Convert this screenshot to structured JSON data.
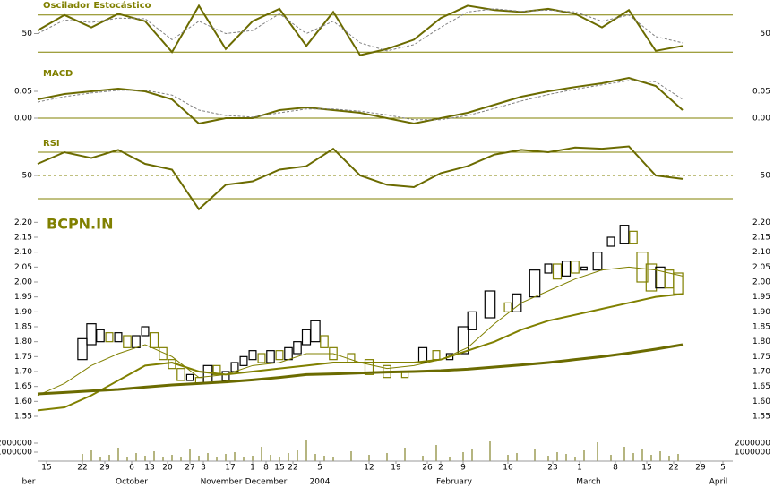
{
  "chart_data": [
    {
      "type": "line",
      "title": "Oscilador Estocástico",
      "ylim": [
        0,
        100
      ],
      "yticks": [
        50
      ],
      "reference_lines": [
        20,
        80
      ],
      "x": [
        0,
        6,
        12,
        18,
        24,
        30,
        36,
        42,
        48,
        54,
        60,
        66,
        72,
        78,
        84,
        90,
        96,
        102,
        108,
        114,
        120,
        126,
        132,
        138,
        144
      ],
      "series": [
        {
          "color": "#6b6b00",
          "style": "solid",
          "values": [
            55,
            80,
            60,
            82,
            70,
            20,
            95,
            25,
            70,
            90,
            30,
            85,
            15,
            25,
            40,
            75,
            95,
            88,
            85,
            90,
            82,
            60,
            88,
            22,
            30
          ]
        },
        {
          "color": "#808080",
          "style": "dashed",
          "values": [
            50,
            72,
            68,
            75,
            74,
            40,
            70,
            50,
            55,
            82,
            50,
            70,
            35,
            22,
            32,
            60,
            85,
            90,
            86,
            88,
            85,
            70,
            80,
            45,
            35
          ]
        }
      ]
    },
    {
      "type": "line",
      "title": "MACD",
      "ylim": [
        -0.03,
        0.09
      ],
      "yticks": [
        {
          "value": 0.05,
          "label": "0.05"
        },
        {
          "value": 0,
          "label": "0.00"
        }
      ],
      "reference_lines": [
        0
      ],
      "x": [
        0,
        6,
        12,
        18,
        24,
        30,
        36,
        42,
        48,
        54,
        60,
        66,
        72,
        78,
        84,
        90,
        96,
        102,
        108,
        114,
        120,
        126,
        132,
        138,
        144
      ],
      "series": [
        {
          "color": "#6b6b00",
          "style": "solid",
          "values": [
            0.035,
            0.045,
            0.05,
            0.055,
            0.05,
            0.035,
            -0.01,
            0.0,
            0.0,
            0.015,
            0.02,
            0.015,
            0.01,
            0.0,
            -0.01,
            0.0,
            0.01,
            0.025,
            0.04,
            0.05,
            0.058,
            0.065,
            0.075,
            0.06,
            0.015
          ]
        },
        {
          "color": "#808080",
          "style": "dashed",
          "values": [
            0.03,
            0.04,
            0.047,
            0.052,
            0.052,
            0.043,
            0.015,
            0.005,
            0.002,
            0.01,
            0.017,
            0.017,
            0.013,
            0.006,
            -0.003,
            -0.003,
            0.005,
            0.018,
            0.032,
            0.044,
            0.054,
            0.062,
            0.07,
            0.068,
            0.035
          ]
        }
      ]
    },
    {
      "type": "line",
      "title": "RSI",
      "ylim": [
        20,
        90
      ],
      "yticks": [
        50
      ],
      "reference_lines": [
        30,
        70
      ],
      "dashed_lines": [
        50
      ],
      "x": [
        0,
        6,
        12,
        18,
        24,
        30,
        36,
        42,
        48,
        54,
        60,
        66,
        72,
        78,
        84,
        90,
        96,
        102,
        108,
        114,
        120,
        126,
        132,
        138,
        144
      ],
      "series": [
        {
          "color": "#6b6b00",
          "style": "solid",
          "values": [
            60,
            70,
            65,
            72,
            60,
            55,
            21,
            42,
            45,
            55,
            58,
            73,
            50,
            42,
            40,
            52,
            58,
            68,
            72,
            70,
            74,
            73,
            75,
            50,
            47
          ]
        }
      ]
    },
    {
      "type": "candlestick",
      "title": "BCPN.IN",
      "ylim": [
        1.52,
        2.225
      ],
      "up_color": "#000000",
      "down_color": "#808000",
      "yticks": [
        {
          "value": 1.55,
          "label": "1.55"
        },
        {
          "value": 1.6,
          "label": "1.60"
        },
        {
          "value": 1.65,
          "label": "1.65"
        },
        {
          "value": 1.7,
          "label": "1.70"
        },
        {
          "value": 1.75,
          "label": "1.75"
        },
        {
          "value": 1.8,
          "label": "1.80"
        },
        {
          "value": 1.85,
          "label": "1.85"
        },
        {
          "value": 1.9,
          "label": "1.90"
        },
        {
          "value": 1.95,
          "label": "1.95"
        },
        {
          "value": 2.0,
          "label": "2.00"
        },
        {
          "value": 2.05,
          "label": "2.05"
        },
        {
          "value": 2.1,
          "label": "2.10"
        },
        {
          "value": 2.15,
          "label": "2.15"
        },
        {
          "value": 2.2,
          "label": "2.20"
        }
      ],
      "candles": {
        "x": [
          10,
          12,
          14,
          16,
          18,
          20,
          22,
          24,
          26,
          28,
          30,
          32,
          34,
          36,
          38,
          40,
          42,
          44,
          46,
          48,
          50,
          52,
          54,
          56,
          58,
          60,
          62,
          64,
          66,
          70,
          74,
          78,
          82,
          86,
          89,
          92,
          95,
          97,
          101,
          105,
          107,
          111,
          114,
          116,
          118,
          120,
          122,
          125,
          128,
          131,
          133,
          135,
          137,
          139,
          141,
          143
        ],
        "open": [
          1.74,
          1.79,
          1.8,
          1.83,
          1.8,
          1.82,
          1.78,
          1.82,
          1.83,
          1.78,
          1.74,
          1.71,
          1.67,
          1.68,
          1.66,
          1.72,
          1.67,
          1.7,
          1.72,
          1.74,
          1.76,
          1.73,
          1.77,
          1.74,
          1.76,
          1.79,
          1.8,
          1.82,
          1.78,
          1.76,
          1.74,
          1.72,
          1.7,
          1.73,
          1.77,
          1.74,
          1.76,
          1.84,
          1.88,
          1.93,
          1.9,
          1.95,
          2.03,
          2.06,
          2.02,
          2.07,
          2.04,
          2.04,
          2.12,
          2.13,
          2.17,
          2.1,
          2.06,
          1.98,
          2.04,
          2.03
        ],
        "close": [
          1.81,
          1.86,
          1.84,
          1.8,
          1.83,
          1.78,
          1.82,
          1.85,
          1.78,
          1.74,
          1.71,
          1.67,
          1.69,
          1.66,
          1.72,
          1.69,
          1.7,
          1.73,
          1.75,
          1.77,
          1.73,
          1.77,
          1.74,
          1.78,
          1.8,
          1.84,
          1.87,
          1.78,
          1.74,
          1.73,
          1.69,
          1.68,
          1.68,
          1.78,
          1.74,
          1.76,
          1.85,
          1.9,
          1.97,
          1.9,
          1.96,
          2.04,
          2.06,
          2.01,
          2.07,
          2.03,
          2.05,
          2.1,
          2.15,
          2.19,
          2.13,
          2.0,
          1.97,
          2.05,
          1.98,
          1.96
        ]
      },
      "x": [
        0,
        6,
        12,
        18,
        24,
        30,
        36,
        42,
        48,
        54,
        60,
        66,
        72,
        78,
        84,
        90,
        96,
        102,
        108,
        114,
        120,
        126,
        132,
        138,
        144
      ],
      "series": [
        {
          "color": "#808000",
          "width": 1,
          "values": [
            1.62,
            1.66,
            1.72,
            1.76,
            1.79,
            1.75,
            1.68,
            1.69,
            1.72,
            1.73,
            1.76,
            1.76,
            1.73,
            1.71,
            1.72,
            1.74,
            1.78,
            1.86,
            1.93,
            1.97,
            2.01,
            2.04,
            2.05,
            2.04,
            2.02
          ]
        },
        {
          "color": "#808000",
          "width": 2,
          "values": [
            1.57,
            1.58,
            1.62,
            1.67,
            1.72,
            1.73,
            1.7,
            1.69,
            1.7,
            1.71,
            1.72,
            1.73,
            1.73,
            1.73,
            1.73,
            1.74,
            1.77,
            1.8,
            1.84,
            1.87,
            1.89,
            1.91,
            1.93,
            1.95,
            1.96
          ]
        },
        {
          "color": "#6b6b00",
          "width": 3,
          "values": [
            1.625,
            1.63,
            1.635,
            1.64,
            1.648,
            1.655,
            1.66,
            1.665,
            1.672,
            1.68,
            1.69,
            1.692,
            1.695,
            1.698,
            1.7,
            1.703,
            1.708,
            1.715,
            1.722,
            1.73,
            1.74,
            1.75,
            1.762,
            1.775,
            1.79
          ]
        }
      ]
    },
    {
      "type": "bar",
      "ylim": [
        0,
        2500000
      ],
      "yticks": [
        1000000,
        2000000
      ],
      "color": "#6b6b00",
      "values": [
        800000,
        1200000,
        500000,
        700000,
        1500000,
        400000,
        900000,
        600000,
        1100000,
        500000,
        700000,
        400000,
        1300000,
        600000,
        900000,
        500000,
        800000,
        1000000,
        400000,
        600000,
        1600000,
        700000,
        500000,
        900000,
        1200000,
        2400000,
        800000,
        600000,
        500000,
        1100000,
        700000,
        900000,
        1500000,
        600000,
        1800000,
        400000,
        1000000,
        1300000,
        2200000,
        700000,
        900000,
        1400000,
        600000,
        1000000,
        800000,
        500000,
        1200000,
        2100000,
        700000,
        1600000,
        900000,
        1300000,
        700000,
        1100000,
        600000,
        800000
      ],
      "xlim": [
        -8,
        164
      ],
      "xticks": [
        {
          "value": 2,
          "label": "15"
        },
        {
          "value": 10,
          "label": "22"
        },
        {
          "value": 15,
          "label": "29"
        },
        {
          "value": 21,
          "label": "6"
        },
        {
          "value": 25,
          "label": "13"
        },
        {
          "value": 29,
          "label": "20"
        },
        {
          "value": 34,
          "label": "27"
        },
        {
          "value": 37,
          "label": "3"
        },
        {
          "value": 43,
          "label": "17"
        },
        {
          "value": 48,
          "label": "1"
        },
        {
          "value": 51,
          "label": "8"
        },
        {
          "value": 54,
          "label": "15"
        },
        {
          "value": 57,
          "label": "22"
        },
        {
          "value": 63,
          "label": "5"
        },
        {
          "value": 74,
          "label": "12"
        },
        {
          "value": 80,
          "label": "19"
        },
        {
          "value": 87,
          "label": "26"
        },
        {
          "value": 90,
          "label": "2"
        },
        {
          "value": 95,
          "label": "9"
        },
        {
          "value": 105,
          "label": "16"
        },
        {
          "value": 115,
          "label": "23"
        },
        {
          "value": 121,
          "label": "1"
        },
        {
          "value": 129,
          "label": "8"
        },
        {
          "value": 136,
          "label": "15"
        },
        {
          "value": 142,
          "label": "22"
        },
        {
          "value": 148,
          "label": "29"
        },
        {
          "value": 153,
          "label": "5"
        }
      ],
      "month_labels": [
        {
          "value": -2,
          "label": "ber"
        },
        {
          "value": 21,
          "label": "October"
        },
        {
          "value": 41,
          "label": "November"
        },
        {
          "value": 51,
          "label": "December"
        },
        {
          "value": 63,
          "label": "2004"
        },
        {
          "value": 93,
          "label": "February"
        },
        {
          "value": 123,
          "label": "March"
        },
        {
          "value": 152,
          "label": "April"
        }
      ]
    }
  ]
}
